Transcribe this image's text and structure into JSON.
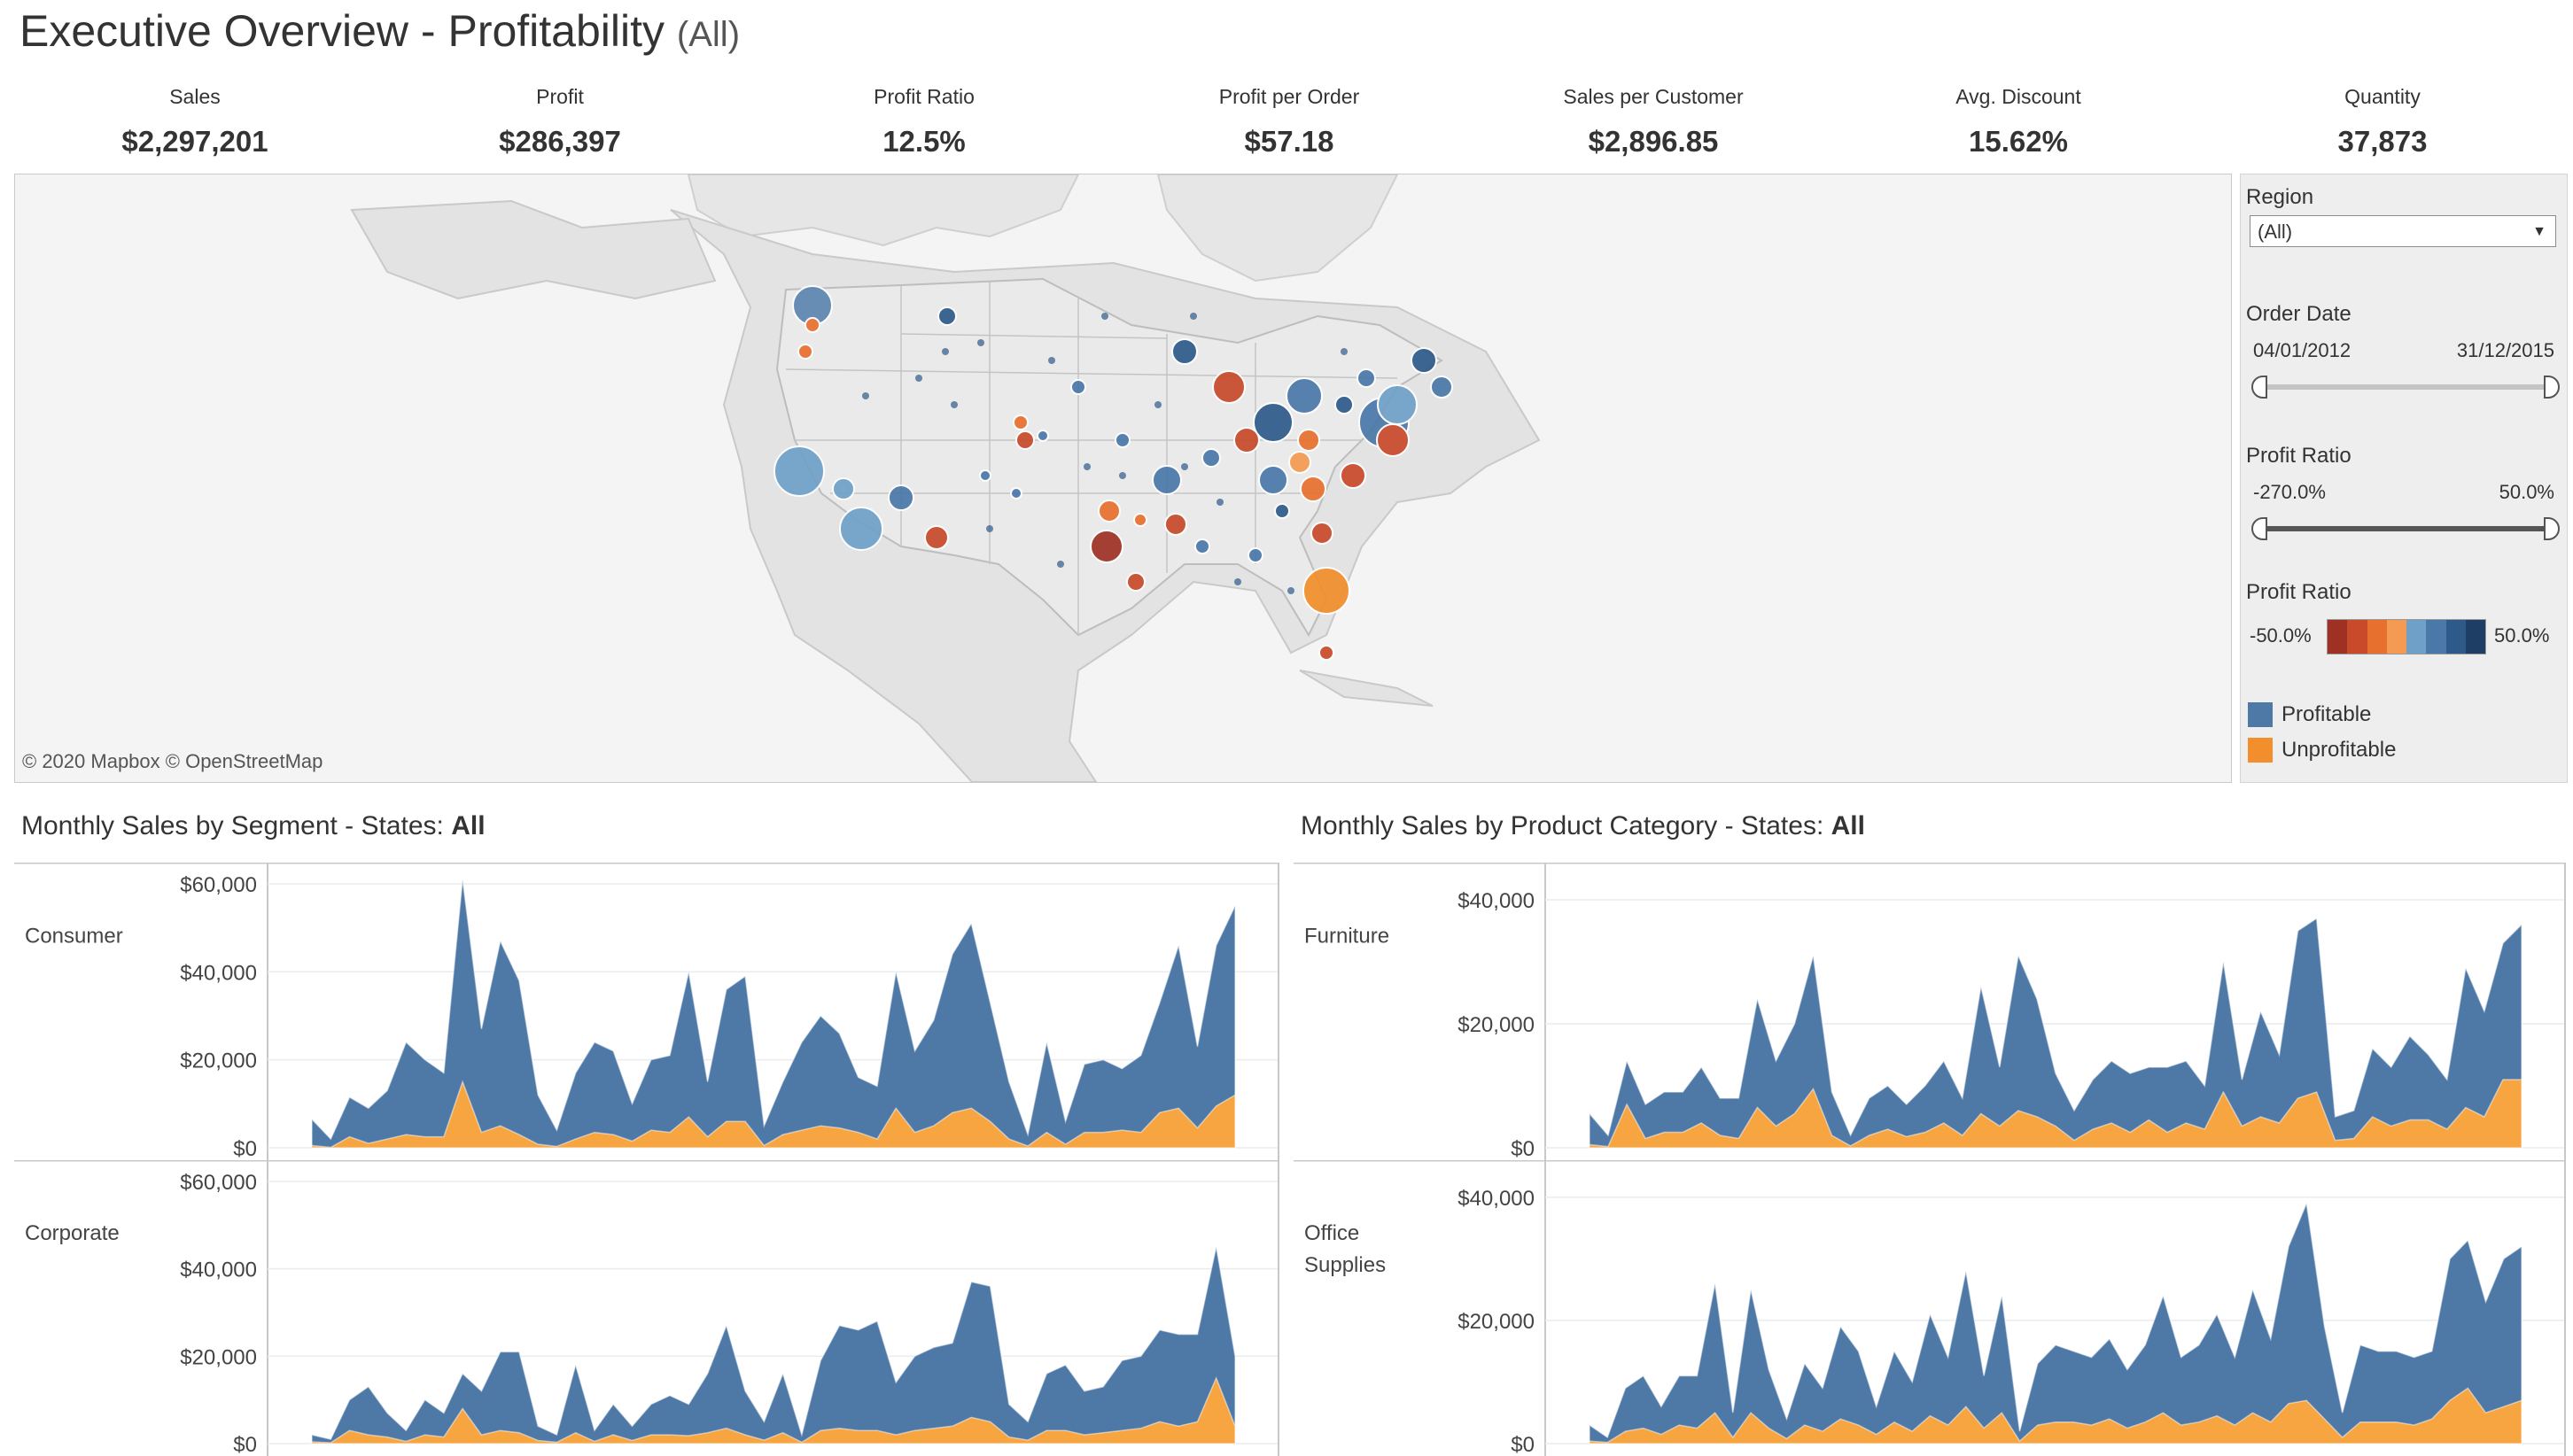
{
  "header": {
    "title": "Executive Overview - Profitability",
    "subtitle": "(All)"
  },
  "kpis": [
    {
      "label": "Sales",
      "value": "$2,297,201"
    },
    {
      "label": "Profit",
      "value": "$286,397"
    },
    {
      "label": "Profit Ratio",
      "value": "12.5%"
    },
    {
      "label": "Profit per Order",
      "value": "$57.18"
    },
    {
      "label": "Sales per Customer",
      "value": "$2,896.85"
    },
    {
      "label": "Avg. Discount",
      "value": "15.62%"
    },
    {
      "label": "Quantity",
      "value": "37,873"
    }
  ],
  "map": {
    "credit": "© 2020 Mapbox © OpenStreetMap"
  },
  "filters": {
    "region": {
      "label": "Region",
      "value": "(All)"
    },
    "order_date": {
      "label": "Order Date",
      "min": "04/01/2012",
      "max": "31/12/2015"
    },
    "profit_ratio": {
      "label": "Profit Ratio",
      "min": "-270.0%",
      "max": "50.0%"
    },
    "color_legend": {
      "label": "Profit Ratio",
      "min": "-50.0%",
      "max": "50.0%",
      "colors": [
        "#9e3124",
        "#c84a2a",
        "#e8702f",
        "#f59a52",
        "#6fa0c8",
        "#4a78a8",
        "#2e5a8a",
        "#1f3e66"
      ]
    },
    "profit_legend": [
      {
        "label": "Profitable",
        "color": "#4e79a7"
      },
      {
        "label": "Unprofitable",
        "color": "#f28e2b"
      }
    ]
  },
  "segment_section": {
    "title": "Monthly Sales by Segment - States: ",
    "title_bold": "All"
  },
  "category_section": {
    "title": "Monthly Sales by Product Category - States: ",
    "title_bold": "All"
  },
  "chart_data": [
    {
      "type": "area",
      "title": "Consumer",
      "y_ticks": [
        "$0",
        "$20,000",
        "$40,000",
        "$60,000"
      ],
      "ylim": [
        0,
        62000
      ],
      "series": [
        {
          "name": "Profitable",
          "values": [
            6500,
            2000,
            11500,
            9000,
            13000,
            24000,
            20000,
            17000,
            61000,
            27000,
            47000,
            38000,
            12000,
            4000,
            17000,
            24000,
            22000,
            10000,
            20000,
            21000,
            40000,
            15000,
            36000,
            39000,
            5000,
            15000,
            24000,
            30000,
            26000,
            16000,
            14000,
            40000,
            22000,
            29000,
            44000,
            51000,
            33000,
            15000,
            3000,
            24000,
            6000,
            19000,
            20000,
            18000,
            21000,
            33000,
            46000,
            23000,
            46000,
            55000
          ]
        },
        {
          "name": "Unprofitable",
          "values": [
            500,
            100,
            2500,
            1000,
            2000,
            3000,
            2500,
            2500,
            15000,
            3500,
            5000,
            3000,
            800,
            300,
            2000,
            3500,
            3000,
            1500,
            4000,
            3500,
            7000,
            2500,
            6000,
            6000,
            500,
            3000,
            4000,
            5000,
            4500,
            3500,
            2000,
            9000,
            3500,
            5000,
            8000,
            9000,
            6000,
            2000,
            400,
            3500,
            800,
            3500,
            3500,
            4000,
            3500,
            8000,
            9000,
            4500,
            9500,
            12000
          ]
        }
      ]
    },
    {
      "type": "area",
      "title": "Corporate",
      "y_ticks": [
        "$0",
        "$20,000",
        "$40,000",
        "$60,000"
      ],
      "ylim": [
        0,
        62000
      ],
      "series": [
        {
          "name": "Profitable",
          "values": [
            2000,
            1000,
            10000,
            13000,
            7000,
            3000,
            10000,
            7000,
            16000,
            12000,
            21000,
            21000,
            4000,
            2000,
            18000,
            3000,
            9000,
            4000,
            9000,
            11000,
            9000,
            16000,
            27000,
            12000,
            5000,
            16000,
            2000,
            19000,
            27000,
            26000,
            28000,
            14000,
            20000,
            22000,
            23000,
            37000,
            36000,
            9000,
            5000,
            16000,
            18000,
            12000,
            13000,
            19000,
            20000,
            26000,
            25000,
            25000,
            45000,
            20000
          ]
        },
        {
          "name": "Unprofitable",
          "values": [
            400,
            200,
            3000,
            2000,
            1500,
            500,
            2000,
            1500,
            8000,
            2000,
            3000,
            2500,
            700,
            300,
            2500,
            500,
            2000,
            700,
            2000,
            2000,
            1800,
            2500,
            3500,
            2000,
            800,
            2500,
            300,
            3000,
            3500,
            3000,
            3000,
            2000,
            3000,
            3500,
            4000,
            6000,
            5000,
            1500,
            800,
            3000,
            3000,
            2000,
            2500,
            3000,
            3500,
            5000,
            4000,
            5000,
            15000,
            4000
          ]
        }
      ]
    },
    {
      "type": "area",
      "title": "Furniture",
      "y_ticks": [
        "$0",
        "$20,000",
        "$40,000"
      ],
      "ylim": [
        0,
        44000
      ],
      "series": [
        {
          "name": "Profitable",
          "values": [
            5500,
            2000,
            14000,
            7000,
            9000,
            9000,
            13000,
            8000,
            8000,
            24000,
            14000,
            20000,
            31000,
            9000,
            2000,
            8000,
            10000,
            7000,
            10000,
            14000,
            8000,
            26000,
            13000,
            31000,
            24000,
            12000,
            6000,
            11000,
            14000,
            12000,
            13000,
            13000,
            14000,
            10000,
            30000,
            11000,
            22000,
            15000,
            35000,
            37000,
            5000,
            6000,
            16000,
            13000,
            18000,
            15000,
            11000,
            29000,
            22000,
            33000,
            36000
          ]
        },
        {
          "name": "Unprofitable",
          "values": [
            500,
            200,
            7000,
            1500,
            2500,
            2500,
            4000,
            2000,
            1500,
            6500,
            3500,
            5500,
            9500,
            2000,
            300,
            2000,
            3000,
            1800,
            2500,
            4000,
            2000,
            5500,
            3500,
            6000,
            5000,
            3500,
            1200,
            3000,
            4000,
            2500,
            4500,
            2500,
            4000,
            3000,
            9000,
            3500,
            5000,
            4000,
            8000,
            9000,
            1200,
            1500,
            5000,
            3500,
            4500,
            4500,
            3000,
            6500,
            5000,
            11000,
            11000
          ]
        }
      ]
    },
    {
      "type": "area",
      "title": "Office Supplies",
      "y_ticks": [
        "$0",
        "$20,000",
        "$40,000"
      ],
      "ylim": [
        0,
        44000
      ],
      "series": [
        {
          "name": "Profitable",
          "values": [
            3000,
            1000,
            9000,
            11000,
            6000,
            11000,
            11000,
            26000,
            5000,
            25000,
            12000,
            4000,
            13000,
            9000,
            19000,
            15000,
            6000,
            15000,
            10000,
            21000,
            14000,
            28000,
            11000,
            24000,
            2000,
            13000,
            16000,
            15000,
            14000,
            17000,
            12000,
            16000,
            24000,
            14000,
            16000,
            21000,
            14000,
            25000,
            17000,
            32000,
            39000,
            19000,
            5000,
            16000,
            15000,
            15000,
            14000,
            15000,
            30000,
            33000,
            23000,
            30000,
            32000
          ]
        },
        {
          "name": "Unprofitable",
          "values": [
            400,
            200,
            2000,
            2500,
            1500,
            3000,
            2500,
            5000,
            1000,
            5000,
            2500,
            800,
            3000,
            2000,
            4000,
            3000,
            1500,
            3500,
            2000,
            4500,
            3000,
            6000,
            2500,
            5000,
            400,
            3000,
            3500,
            3500,
            3000,
            4000,
            2500,
            3500,
            5000,
            3000,
            3500,
            4500,
            3000,
            5000,
            3500,
            6500,
            7000,
            4000,
            1000,
            3500,
            3500,
            3500,
            3000,
            4000,
            7000,
            9000,
            5000,
            6000,
            7000
          ]
        }
      ]
    }
  ]
}
